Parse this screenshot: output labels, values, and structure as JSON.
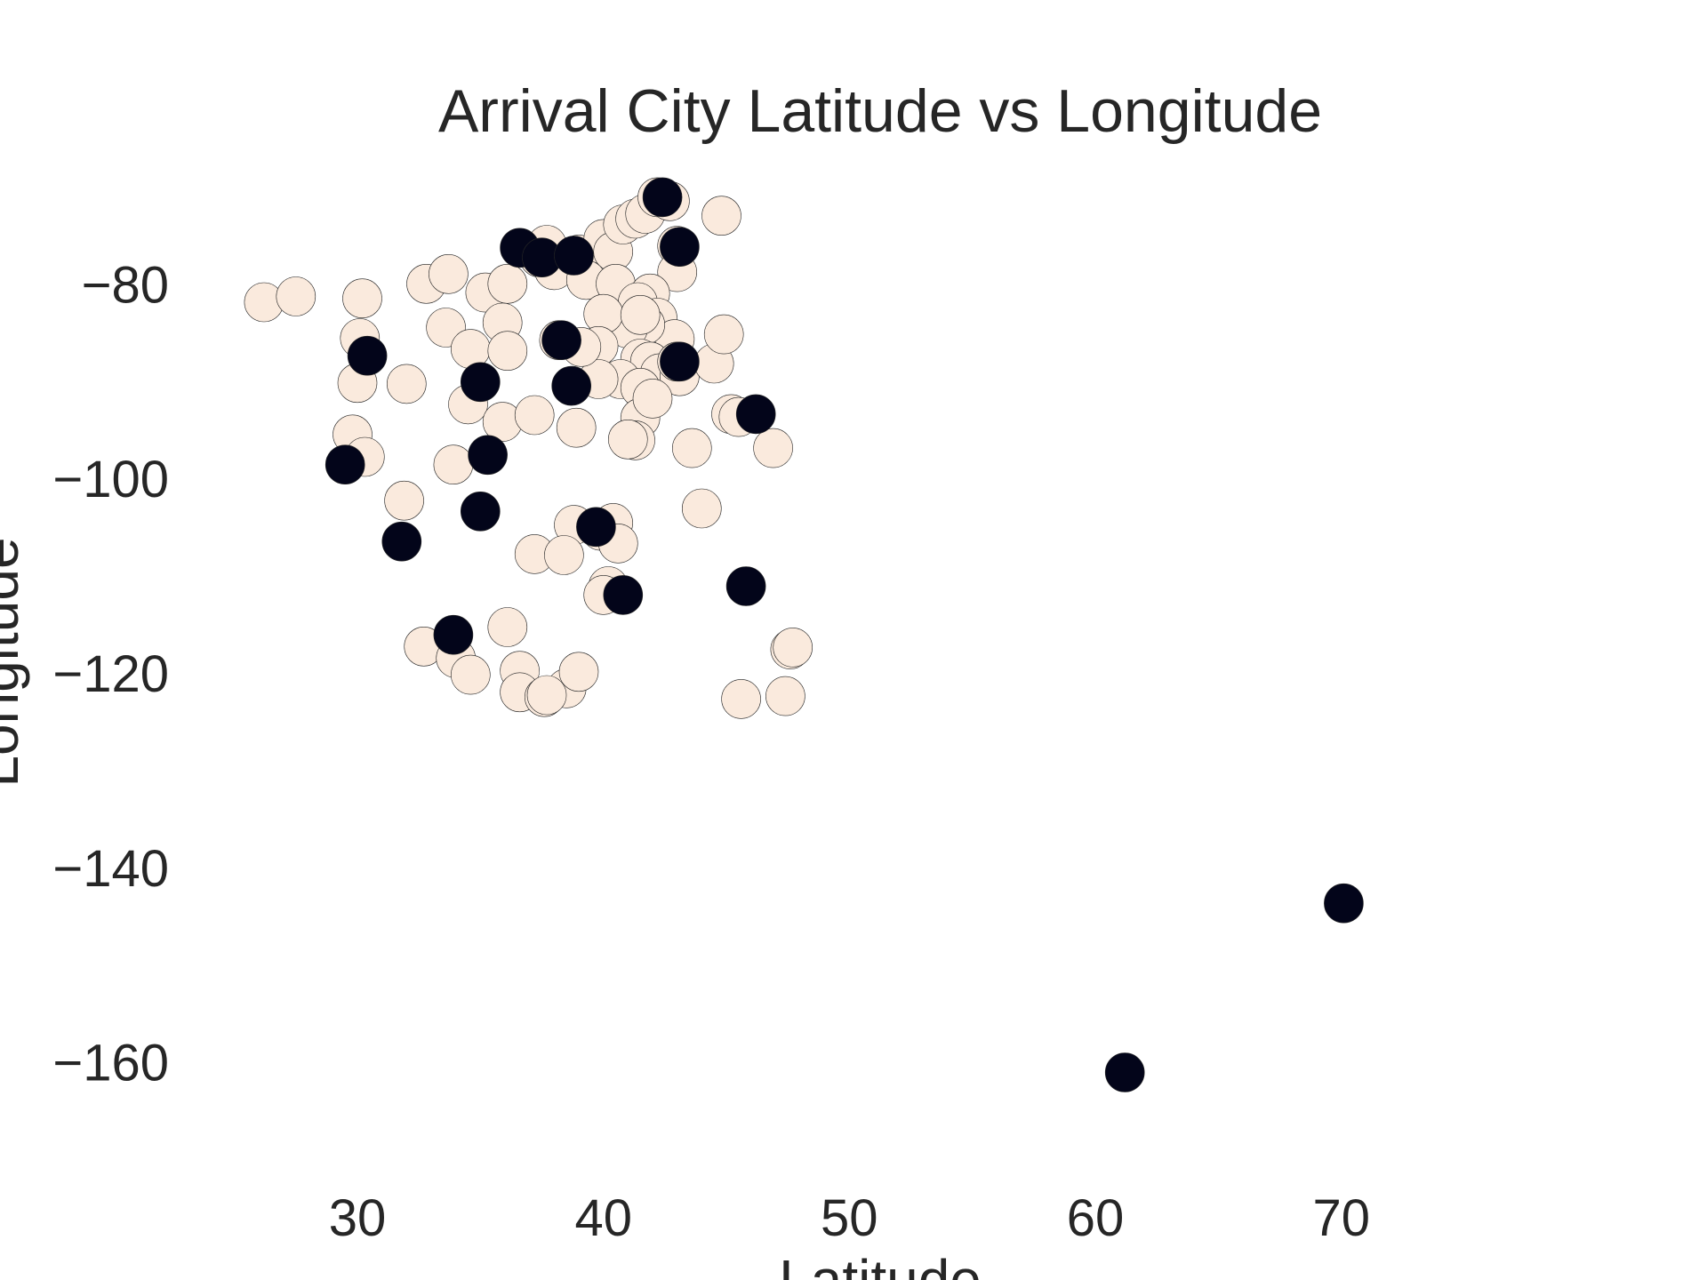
{
  "chart_data": {
    "type": "scatter",
    "title": "Arrival City Latitude vs Longitude",
    "xlabel": "Latitude",
    "ylabel": "Longitude",
    "xlim": [
      24,
      78
    ],
    "ylim": [
      -170,
      -69
    ],
    "xticks": [
      30,
      40,
      50,
      60,
      70
    ],
    "yticks": [
      -80,
      -100,
      -120,
      -140,
      -160
    ],
    "grid": false,
    "legend": "none",
    "colors": {
      "light": "#faeadd",
      "dark": "#03051a",
      "outline": "#262626"
    },
    "series": [
      {
        "color": "light",
        "points": [
          [
            26.2,
            -81.8
          ],
          [
            27.5,
            -81.2
          ],
          [
            30.2,
            -81.4
          ],
          [
            32.8,
            -79.9
          ],
          [
            33.7,
            -78.9
          ],
          [
            35.2,
            -80.8
          ],
          [
            36.1,
            -79.9
          ],
          [
            30.1,
            -85.5
          ],
          [
            30.0,
            -90.1
          ],
          [
            29.8,
            -95.4
          ],
          [
            30.3,
            -97.7
          ],
          [
            32.0,
            -90.2
          ],
          [
            33.6,
            -84.4
          ],
          [
            34.6,
            -86.6
          ],
          [
            35.9,
            -83.9
          ],
          [
            36.1,
            -86.8
          ],
          [
            34.5,
            -92.3
          ],
          [
            35.9,
            -94.1
          ],
          [
            33.9,
            -98.5
          ],
          [
            31.9,
            -102.2
          ],
          [
            38.2,
            -85.7
          ],
          [
            37.4,
            -77.2
          ],
          [
            38.0,
            -78.5
          ],
          [
            37.7,
            -75.9
          ],
          [
            39.0,
            -76.9
          ],
          [
            40.0,
            -75.3
          ],
          [
            40.4,
            -76.6
          ],
          [
            39.3,
            -79.5
          ],
          [
            40.5,
            -79.9
          ],
          [
            40.8,
            -73.8
          ],
          [
            41.3,
            -73.2
          ],
          [
            41.7,
            -72.7
          ],
          [
            42.2,
            -71.0
          ],
          [
            42.7,
            -71.4
          ],
          [
            44.8,
            -72.9
          ],
          [
            43.0,
            -76.0
          ],
          [
            43.0,
            -78.7
          ],
          [
            41.9,
            -80.9
          ],
          [
            41.4,
            -81.8
          ],
          [
            42.2,
            -83.4
          ],
          [
            42.9,
            -85.6
          ],
          [
            41.7,
            -84.1
          ],
          [
            41.0,
            -84.5
          ],
          [
            40.0,
            -83.0
          ],
          [
            39.8,
            -86.3
          ],
          [
            41.5,
            -87.6
          ],
          [
            41.9,
            -87.9
          ],
          [
            42.3,
            -89.1
          ],
          [
            43.1,
            -89.4
          ],
          [
            43.0,
            -87.9
          ],
          [
            44.5,
            -88.1
          ],
          [
            44.9,
            -85.1
          ],
          [
            40.7,
            -89.7
          ],
          [
            39.8,
            -89.7
          ],
          [
            41.5,
            -90.6
          ],
          [
            38.9,
            -94.7
          ],
          [
            37.2,
            -93.4
          ],
          [
            39.1,
            -86.4
          ],
          [
            41.5,
            -93.7
          ],
          [
            42.0,
            -91.7
          ],
          [
            41.3,
            -96.0
          ],
          [
            43.6,
            -96.8
          ],
          [
            41.0,
            -95.9
          ],
          [
            46.9,
            -96.8
          ],
          [
            45.2,
            -93.3
          ],
          [
            45.5,
            -93.6
          ],
          [
            44.0,
            -103.0
          ],
          [
            38.8,
            -104.7
          ],
          [
            39.9,
            -105.3
          ],
          [
            40.4,
            -104.5
          ],
          [
            40.6,
            -106.6
          ],
          [
            37.2,
            -107.7
          ],
          [
            38.4,
            -107.8
          ],
          [
            40.2,
            -111.0
          ],
          [
            36.1,
            -115.2
          ],
          [
            32.7,
            -117.2
          ],
          [
            34.0,
            -118.4
          ],
          [
            34.6,
            -120.1
          ],
          [
            36.6,
            -119.7
          ],
          [
            36.6,
            -121.9
          ],
          [
            37.6,
            -122.4
          ],
          [
            38.5,
            -121.5
          ],
          [
            39.0,
            -119.8
          ],
          [
            37.7,
            -122.2
          ],
          [
            45.6,
            -122.6
          ],
          [
            47.4,
            -122.3
          ],
          [
            47.6,
            -117.5
          ],
          [
            47.7,
            -117.3
          ],
          [
            40.0,
            -111.9
          ],
          [
            41.5,
            -83.1
          ]
        ]
      },
      {
        "color": "dark",
        "points": [
          [
            42.4,
            -71.0
          ],
          [
            36.6,
            -76.2
          ],
          [
            37.5,
            -77.2
          ],
          [
            38.8,
            -77.0
          ],
          [
            43.1,
            -76.1
          ],
          [
            30.4,
            -87.3
          ],
          [
            35.0,
            -90.0
          ],
          [
            38.3,
            -85.7
          ],
          [
            38.7,
            -90.4
          ],
          [
            43.1,
            -87.9
          ],
          [
            46.2,
            -93.3
          ],
          [
            29.5,
            -98.5
          ],
          [
            35.3,
            -97.5
          ],
          [
            35.0,
            -103.3
          ],
          [
            31.8,
            -106.4
          ],
          [
            39.7,
            -104.9
          ],
          [
            40.8,
            -111.9
          ],
          [
            45.8,
            -111.0
          ],
          [
            33.9,
            -116.0
          ],
          [
            61.2,
            -161.0
          ],
          [
            70.1,
            -143.6
          ]
        ]
      }
    ]
  }
}
